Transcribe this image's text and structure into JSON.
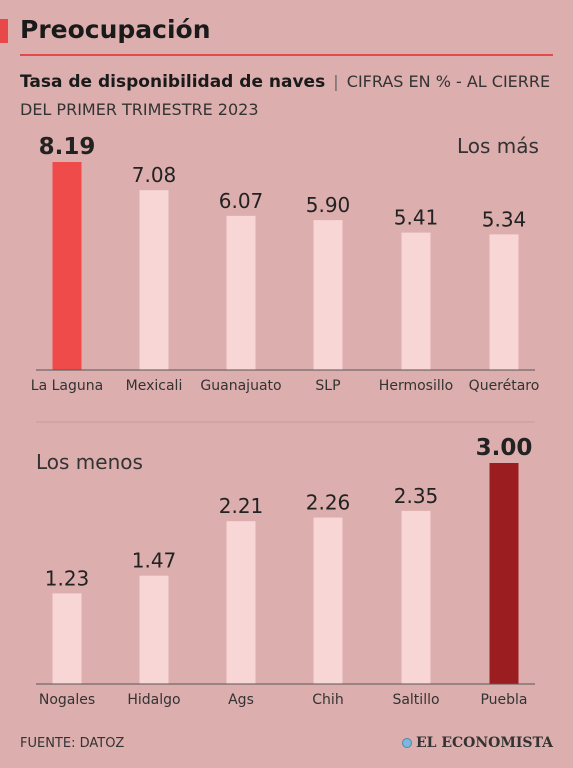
{
  "header": {
    "title": "Preocupación",
    "subtitle_bold": "Tasa de disponibilidad de naves",
    "subtitle_sep": "|",
    "subtitle_rest": "CIFRAS EN % - AL CIERRE DEL PRIMER TRIMESTRE 2023"
  },
  "colors": {
    "accent": "#e8484a",
    "highlight_top": "#f04b4b",
    "highlight_bottom": "#9b1d20",
    "bar_default": "#f8d6d6",
    "background": "#dcaeae"
  },
  "chart_data": [
    {
      "type": "bar",
      "title": "Los más",
      "categories": [
        "La Laguna",
        "Mexicali",
        "Guanajuato",
        "SLP",
        "Hermosillo",
        "Querétaro"
      ],
      "values": [
        8.19,
        7.08,
        6.07,
        5.9,
        5.41,
        5.34
      ],
      "value_labels": [
        "8.19",
        "7.08",
        "6.07",
        "5.90",
        "5.41",
        "5.34"
      ],
      "highlight_index": 0,
      "ylim": [
        0,
        8.19
      ]
    },
    {
      "type": "bar",
      "title": "Los menos",
      "categories": [
        "Nogales",
        "Hidalgo",
        "Ags",
        "Chih",
        "Saltillo",
        "Puebla"
      ],
      "values": [
        1.23,
        1.47,
        2.21,
        2.26,
        2.35,
        3.0
      ],
      "value_labels": [
        "1.23",
        "1.47",
        "2.21",
        "2.26",
        "2.35",
        "3.00"
      ],
      "highlight_index": 5,
      "ylim": [
        0,
        3.0
      ]
    }
  ],
  "footer": {
    "source": "FUENTE: DATOZ",
    "logo": "EL ECONOMISTA"
  }
}
